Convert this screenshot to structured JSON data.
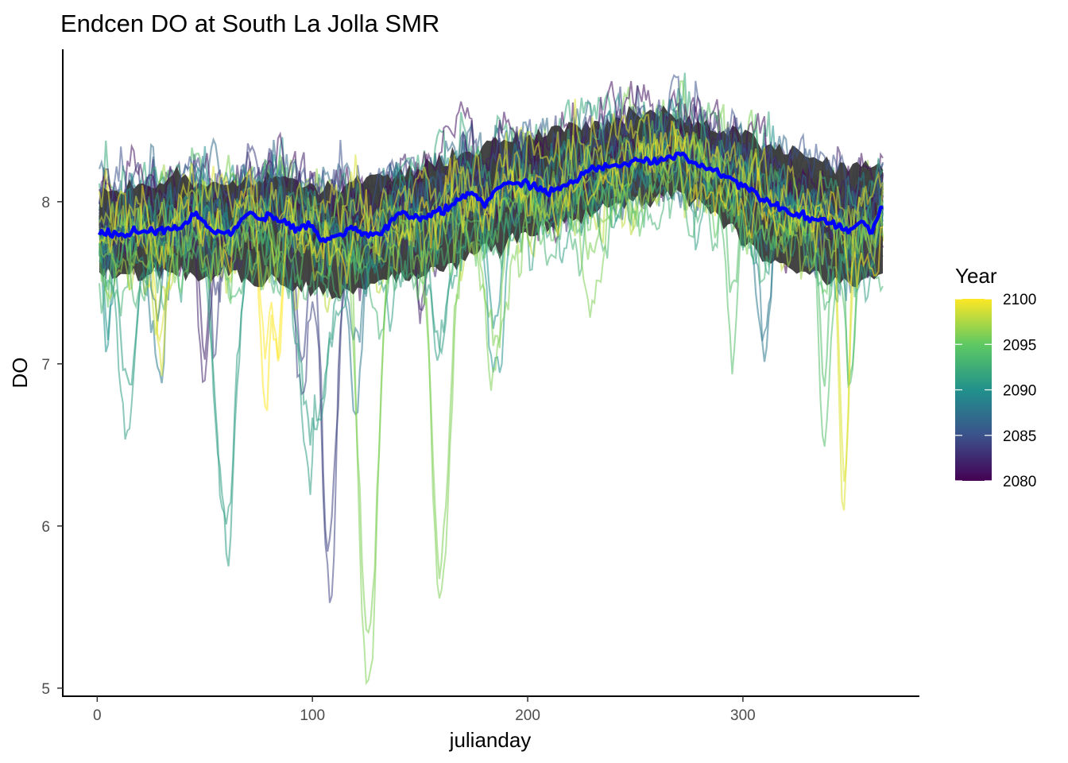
{
  "chart_data": {
    "type": "line",
    "title": "Endcen DO at South La Jolla SMR",
    "xlabel": "julianday",
    "ylabel": "DO",
    "xlim": [
      -16,
      382
    ],
    "ylim": [
      4.95,
      8.95
    ],
    "x_ticks": [
      0,
      100,
      200,
      300
    ],
    "y_ticks": [
      5,
      6,
      7,
      8
    ],
    "grid": false,
    "legend": {
      "title": "Year",
      "position": "right",
      "type": "colorbar",
      "range": [
        2080,
        2100
      ],
      "ticks": [
        2080,
        2085,
        2090,
        2095,
        2100
      ],
      "colors": [
        "#440154",
        "#3b528b",
        "#21918c",
        "#5ec962",
        "#fde725"
      ]
    },
    "colors": {
      "mean_line": "#0000ff",
      "ribbon": "#3a3a3a",
      "axis": "#000000"
    },
    "mean_series": {
      "x": [
        1,
        10,
        20,
        30,
        40,
        45,
        55,
        62,
        70,
        75,
        80,
        90,
        100,
        105,
        110,
        118,
        125,
        132,
        140,
        150,
        158,
        165,
        170,
        175,
        180,
        185,
        190,
        200,
        210,
        220,
        230,
        240,
        250,
        260,
        270,
        280,
        290,
        300,
        310,
        320,
        330,
        340,
        350,
        355,
        360,
        365
      ],
      "y": [
        7.8,
        7.8,
        7.82,
        7.82,
        7.85,
        7.92,
        7.82,
        7.8,
        7.93,
        7.9,
        7.92,
        7.85,
        7.85,
        7.76,
        7.78,
        7.84,
        7.8,
        7.8,
        7.92,
        7.9,
        7.93,
        7.97,
        8.04,
        8.05,
        7.98,
        8.08,
        8.1,
        8.12,
        8.05,
        8.12,
        8.2,
        8.22,
        8.25,
        8.25,
        8.3,
        8.22,
        8.18,
        8.1,
        8.02,
        7.95,
        7.9,
        7.88,
        7.82,
        7.88,
        7.82,
        7.97
      ]
    },
    "ribbon": {
      "x": [
        1,
        20,
        40,
        60,
        80,
        100,
        110,
        130,
        150,
        170,
        190,
        210,
        230,
        250,
        270,
        290,
        310,
        330,
        350,
        365
      ],
      "lower": [
        7.55,
        7.55,
        7.55,
        7.55,
        7.52,
        7.45,
        7.4,
        7.5,
        7.55,
        7.65,
        7.75,
        7.85,
        7.95,
        8.0,
        8.05,
        7.9,
        7.65,
        7.55,
        7.5,
        7.55
      ],
      "upper": [
        8.05,
        8.1,
        8.15,
        8.12,
        8.15,
        8.1,
        8.1,
        8.15,
        8.2,
        8.3,
        8.35,
        8.42,
        8.5,
        8.52,
        8.52,
        8.45,
        8.35,
        8.28,
        8.22,
        8.2
      ]
    },
    "series_summary": {
      "year_range": [
        2080,
        2100
      ],
      "day_range": [
        1,
        365
      ],
      "minimum": {
        "x": 126,
        "y": 5.15
      }
    }
  }
}
